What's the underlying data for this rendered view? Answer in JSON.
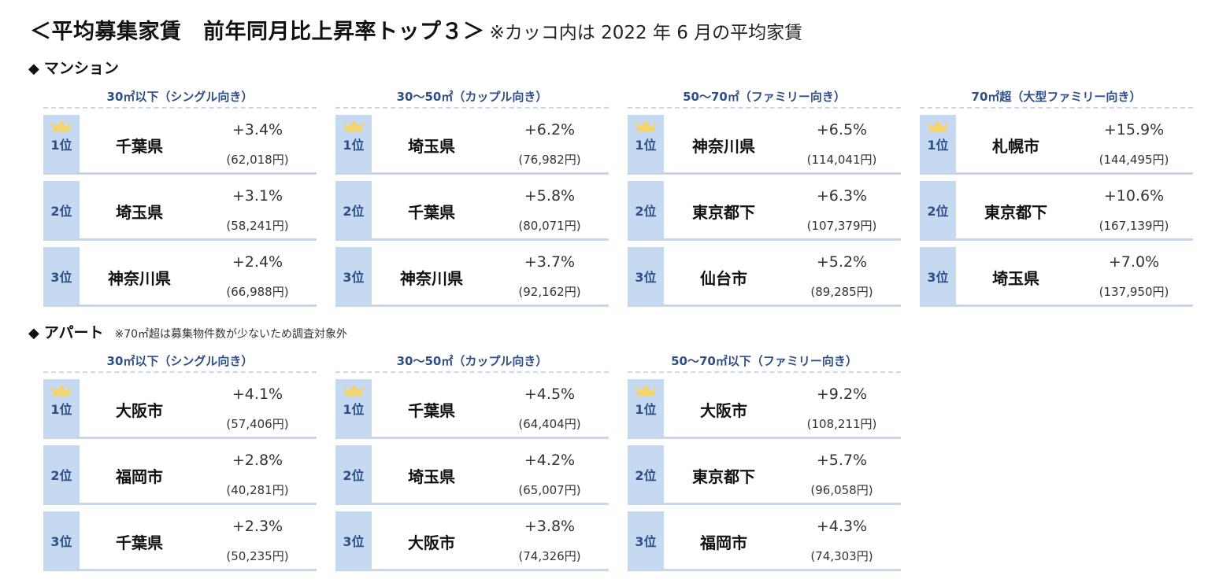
{
  "title": {
    "main": "＜平均募集家賃　前年同月比上昇率トップ３＞",
    "note": "※カッコ内は 2022 年 6 月の平均家賃"
  },
  "mansion": {
    "label": "マンション",
    "blocks": [
      {
        "title": "30㎡以下（シングル向き）",
        "rows": [
          {
            "rank": "1位",
            "pref": "千葉県",
            "rate": "+3.4%",
            "rent": "(62,018円)"
          },
          {
            "rank": "2位",
            "pref": "埼玉県",
            "rate": "+3.1%",
            "rent": "(58,241円)"
          },
          {
            "rank": "3位",
            "pref": "神奈川県",
            "rate": "+2.4%",
            "rent": "(66,988円)"
          }
        ]
      },
      {
        "title": "30～50㎡（カップル向き）",
        "rows": [
          {
            "rank": "1位",
            "pref": "埼玉県",
            "rate": "+6.2%",
            "rent": "(76,982円)"
          },
          {
            "rank": "2位",
            "pref": "千葉県",
            "rate": "+5.8%",
            "rent": "(80,071円)"
          },
          {
            "rank": "3位",
            "pref": "神奈川県",
            "rate": "+3.7%",
            "rent": "(92,162円)"
          }
        ]
      },
      {
        "title": "50～70㎡（ファミリー向き）",
        "rows": [
          {
            "rank": "1位",
            "pref": "神奈川県",
            "rate": "+6.5%",
            "rent": "(114,041円)"
          },
          {
            "rank": "2位",
            "pref": "東京都下",
            "rate": "+6.3%",
            "rent": "(107,379円)"
          },
          {
            "rank": "3位",
            "pref": "仙台市",
            "rate": "+5.2%",
            "rent": "(89,285円)"
          }
        ]
      },
      {
        "title": "70㎡超（大型ファミリー向き）",
        "rows": [
          {
            "rank": "1位",
            "pref": "札幌市",
            "rate": "+15.9%",
            "rent": "(144,495円)"
          },
          {
            "rank": "2位",
            "pref": "東京都下",
            "rate": "+10.6%",
            "rent": "(167,139円)"
          },
          {
            "rank": "3位",
            "pref": "埼玉県",
            "rate": "+7.0%",
            "rent": "(137,950円)"
          }
        ]
      }
    ]
  },
  "apart": {
    "label": "アパート",
    "note": "※70㎡超は募集物件数が少ないため調査対象外",
    "blocks": [
      {
        "title": "30㎡以下（シングル向き）",
        "rows": [
          {
            "rank": "1位",
            "pref": "大阪市",
            "rate": "+4.1%",
            "rent": "(57,406円)"
          },
          {
            "rank": "2位",
            "pref": "福岡市",
            "rate": "+2.8%",
            "rent": "(40,281円)"
          },
          {
            "rank": "3位",
            "pref": "千葉県",
            "rate": "+2.3%",
            "rent": "(50,235円)"
          }
        ]
      },
      {
        "title": "30～50㎡（カップル向き）",
        "rows": [
          {
            "rank": "1位",
            "pref": "千葉県",
            "rate": "+4.5%",
            "rent": "(64,404円)"
          },
          {
            "rank": "2位",
            "pref": "埼玉県",
            "rate": "+4.2%",
            "rent": "(65,007円)"
          },
          {
            "rank": "3位",
            "pref": "大阪市",
            "rate": "+3.8%",
            "rent": "(74,326円)"
          }
        ]
      },
      {
        "title": "50～70㎡以下（ファミリー向き）",
        "rows": [
          {
            "rank": "1位",
            "pref": "大阪市",
            "rate": "+9.2%",
            "rent": "(108,211円)"
          },
          {
            "rank": "2位",
            "pref": "東京都下",
            "rate": "+5.7%",
            "rent": "(96,058円)"
          },
          {
            "rank": "3位",
            "pref": "福岡市",
            "rate": "+4.3%",
            "rent": "(74,303円)"
          }
        ]
      }
    ]
  },
  "colors": {
    "rank_bg": "#c5d9f0",
    "rank_text": "#2d4f8b",
    "block_title": "#2e4f86",
    "crown": "#f3d36b"
  },
  "icons": {
    "section_marker": "diamond-icon",
    "first_place": "crown-icon"
  }
}
